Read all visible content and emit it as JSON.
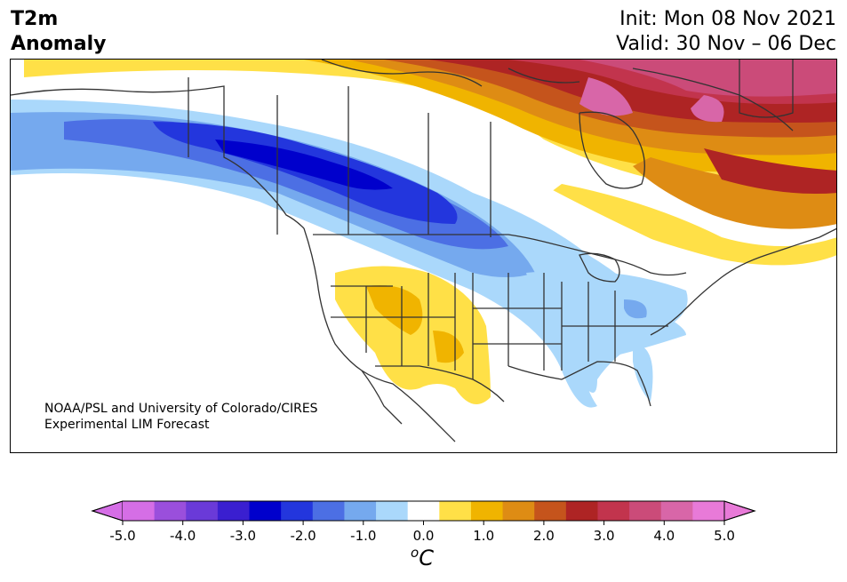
{
  "header": {
    "variable": "T2m",
    "quantity": "Anomaly",
    "init": "Init: Mon 08 Nov 2021",
    "valid": "Valid: 30 Nov – 06 Dec"
  },
  "credit": {
    "line1": "NOAA/PSL and University of Colorado/CIRES",
    "line2": "Experimental LIM Forecast"
  },
  "colorbar": {
    "unit": "C",
    "unit_superscript": "o",
    "tick_labels": [
      "-5.0",
      "-4.0",
      "-3.0",
      "-2.0",
      "-1.0",
      "0.0",
      "1.0",
      "2.0",
      "3.0",
      "4.0",
      "5.0"
    ],
    "levels": [
      -5.0,
      -4.5,
      -4.0,
      -3.5,
      -3.0,
      -2.5,
      -2.0,
      -1.5,
      -1.0,
      -0.5,
      0.5,
      1.0,
      1.5,
      2.0,
      2.5,
      3.0,
      3.5,
      4.0,
      4.5,
      5.0
    ],
    "colors": [
      "#d56ee6",
      "#9a4fdc",
      "#6a3ad8",
      "#3a1fd0",
      "#0000cc",
      "#2336dd",
      "#4c6fe4",
      "#75a9ee",
      "#aad8fb",
      "#ffffff",
      "#ffe047",
      "#f0b400",
      "#de8c14",
      "#c5541c",
      "#ae2424",
      "#c2344d",
      "#cb4b79",
      "#d866a8",
      "#e87ad8"
    ],
    "under_color": "#d56ee6",
    "over_color": "#e87ad8"
  },
  "map": {
    "region": "North America",
    "land_color": "#ffffff",
    "boundary_color": "#333333"
  }
}
